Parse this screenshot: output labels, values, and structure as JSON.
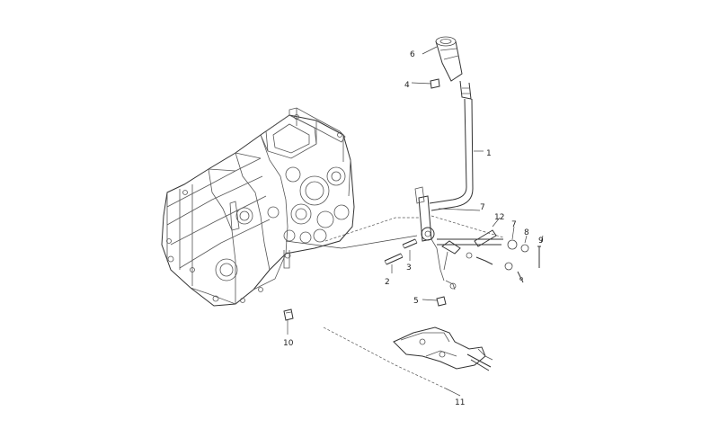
{
  "parts": [
    {
      "id": "part-1",
      "label": "1"
    },
    {
      "id": "part-2",
      "label": "2"
    },
    {
      "id": "part-3",
      "label": "3"
    },
    {
      "id": "part-4",
      "label": "4"
    },
    {
      "id": "part-5",
      "label": "5"
    },
    {
      "id": "part-6",
      "label": "6"
    },
    {
      "id": "part-7a",
      "label": "7"
    },
    {
      "id": "part-7b",
      "label": "7"
    },
    {
      "id": "part-8",
      "label": "8"
    },
    {
      "id": "part-9",
      "label": "9"
    },
    {
      "id": "part-10",
      "label": "10"
    },
    {
      "id": "part-11",
      "label": "11"
    },
    {
      "id": "part-12",
      "label": "12"
    }
  ]
}
